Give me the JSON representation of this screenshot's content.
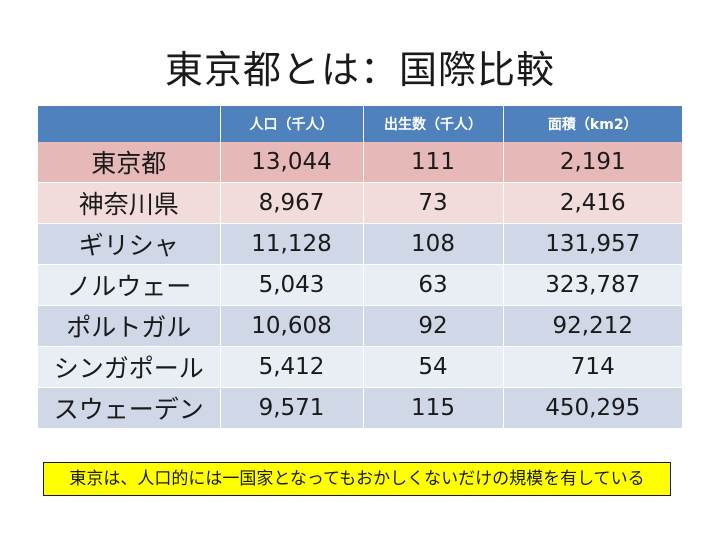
{
  "title": "東京都とは：国際比較",
  "table": {
    "headers": [
      "",
      "人口（千人）",
      "出生数（千人）",
      "面積（km2）"
    ],
    "rows": [
      {
        "name": "東京都",
        "population": "13,044",
        "births": "111",
        "area": "2,191"
      },
      {
        "name": "神奈川県",
        "population": "8,967",
        "births": "73",
        "area": "2,416"
      },
      {
        "name": "ギリシャ",
        "population": "11,128",
        "births": "108",
        "area": "131,957"
      },
      {
        "name": "ノルウェー",
        "population": "5,043",
        "births": "63",
        "area": "323,787"
      },
      {
        "name": "ポルトガル",
        "population": "10,608",
        "births": "92",
        "area": "92,212"
      },
      {
        "name": "シンガポール",
        "population": "5,412",
        "births": "54",
        "area": "714"
      },
      {
        "name": "スウェーデン",
        "population": "9,571",
        "births": "115",
        "area": "450,295"
      }
    ]
  },
  "note": "東京は、人口的には一国家となってもおかしくないだけの規模を有している",
  "colors": {
    "header_bg": "#4f81bd",
    "row_pink_dark": "#e6b9b8",
    "row_pink_light": "#f2dcdb",
    "row_blue_dark": "#d0d8e8",
    "row_blue_light": "#e9edf4",
    "note_bg": "#ffff00"
  }
}
